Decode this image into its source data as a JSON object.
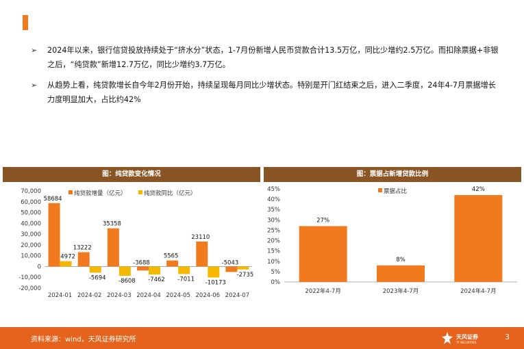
{
  "bullets": [
    {
      "text": "2024年以来，银行信贷投放持续处于“挤水分”状态，1-7月份新增人民币贷款合计13.5万亿，同比少增约2.5万亿。而扣除票据+非银之后，“纯贷款”新增12.7万亿，同比少增约3.7万亿。"
    },
    {
      "text": "从趋势上看，纯贷款增长自今年2月份开始，持续呈现每月同比少增状态。特别是开门红结束之后，进入二季度，24年4-7月票据增长力度明显加大，占比约42%"
    }
  ],
  "colors": {
    "accent": "#F07A1D",
    "panel_header": "#8A5524",
    "bar_orange": "#F07A1D",
    "bar_yellow": "#F5B800",
    "footer": "#E5631C"
  },
  "left_panel": {
    "title": "图：纯贷款变化情况"
  },
  "right_panel": {
    "title": "图：票据占新增贷款比例"
  },
  "chart_data": [
    {
      "type": "bar",
      "categories": [
        "2024-01",
        "2024-02",
        "2024-03",
        "2024-04",
        "2024-05",
        "2024-06",
        "2024-07"
      ],
      "series": [
        {
          "name": "纯贷款增量（亿元）",
          "values": [
            58684,
            13222,
            35358,
            -3688,
            5565,
            23110,
            -5043
          ]
        },
        {
          "name": "纯贷款同比（亿元）",
          "values": [
            4972,
            -5694,
            -8608,
            -7462,
            -7011,
            -10173,
            -2735
          ]
        }
      ],
      "data_labels": [
        [
          "58684",
          "13222",
          "35358",
          "-3688",
          "5565",
          "23110",
          "-5043"
        ],
        [
          "4972",
          "-5694",
          "-8608",
          "-7462",
          "-7011",
          "-10173",
          "-2735"
        ]
      ],
      "yticks": [
        "70,000",
        "60,000",
        "50,000",
        "40,000",
        "30,000",
        "20,000",
        "10,000",
        "0",
        "-10,000",
        "-20,000"
      ],
      "ylim": [
        -20000,
        70000
      ],
      "legend": "top",
      "grid": false
    },
    {
      "type": "bar",
      "categories": [
        "2022年4-7月",
        "2023年4-7月",
        "2024年4-7月"
      ],
      "series": [
        {
          "name": "票据占比",
          "values": [
            27,
            8,
            42
          ]
        }
      ],
      "data_labels": [
        "27%",
        "8%",
        "42%"
      ],
      "yticks": [
        "45%",
        "40%",
        "35%",
        "30%",
        "25%",
        "20%",
        "15%",
        "10%",
        "5%",
        "0%"
      ],
      "ylim": [
        0,
        45
      ],
      "legend": "top",
      "grid": false
    }
  ],
  "footer": {
    "source": "资料来源：wind，天风证券研究所",
    "logo_text": "天风证券",
    "logo_subtext": "TF SECURITIES",
    "page": "3"
  }
}
